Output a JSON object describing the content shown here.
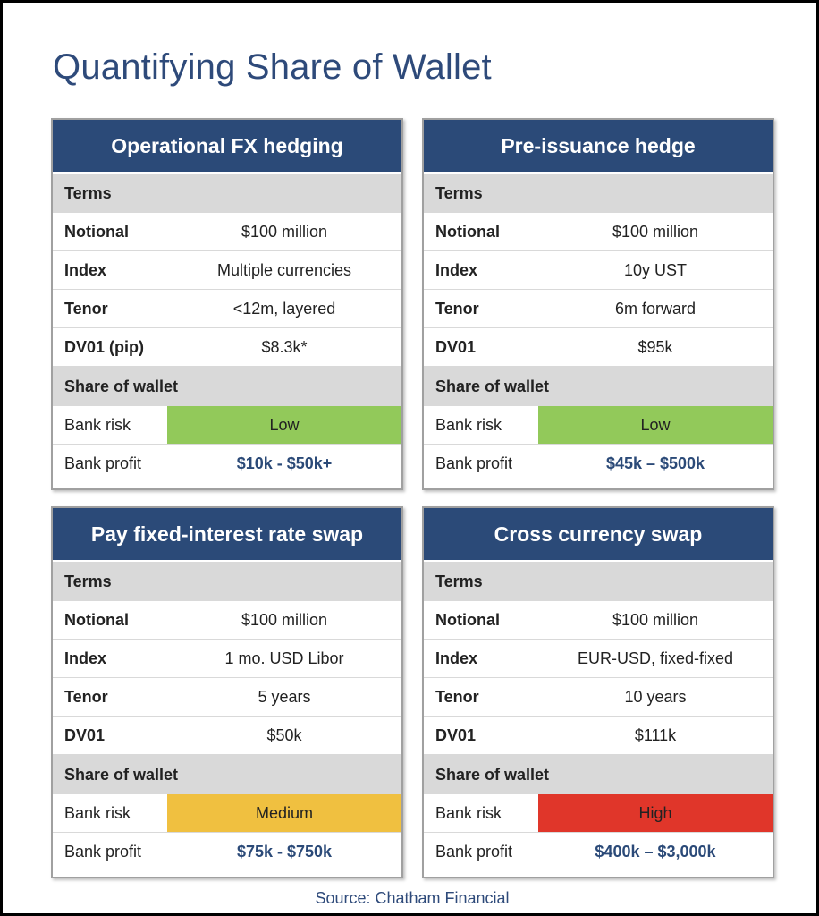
{
  "page": {
    "title": "Quantifying Share of Wallet",
    "source": "Source: Chatham Financial"
  },
  "labels": {
    "terms": "Terms",
    "share_of_wallet": "Share of wallet",
    "bank_risk": "Bank risk",
    "bank_profit": "Bank profit"
  },
  "colors": {
    "header_navy": "#2b4a78",
    "risk_low": "#92c95a",
    "risk_medium": "#f0c040",
    "risk_high": "#e0362a"
  },
  "cards": [
    {
      "title": "Operational FX hedging",
      "terms": [
        {
          "label": "Notional",
          "value": "$100 million"
        },
        {
          "label": "Index",
          "value": "Multiple currencies"
        },
        {
          "label": "Tenor",
          "value": "<12m, layered"
        },
        {
          "label": "DV01 (pip)",
          "value": "$8.3k*"
        }
      ],
      "risk": "Low",
      "risk_color": "#92c95a",
      "profit": "$10k - $50k+"
    },
    {
      "title": "Pre-issuance hedge",
      "terms": [
        {
          "label": "Notional",
          "value": "$100 million"
        },
        {
          "label": "Index",
          "value": "10y UST"
        },
        {
          "label": "Tenor",
          "value": "6m forward"
        },
        {
          "label": "DV01",
          "value": "$95k"
        }
      ],
      "risk": "Low",
      "risk_color": "#92c95a",
      "profit": "$45k – $500k"
    },
    {
      "title": "Pay fixed-interest rate swap",
      "terms": [
        {
          "label": "Notional",
          "value": "$100 million"
        },
        {
          "label": "Index",
          "value": "1 mo. USD Libor"
        },
        {
          "label": "Tenor",
          "value": "5 years"
        },
        {
          "label": "DV01",
          "value": "$50k"
        }
      ],
      "risk": "Medium",
      "risk_color": "#f0c040",
      "profit": "$75k - $750k"
    },
    {
      "title": "Cross currency swap",
      "terms": [
        {
          "label": "Notional",
          "value": "$100 million"
        },
        {
          "label": "Index",
          "value": "EUR-USD, fixed-fixed"
        },
        {
          "label": "Tenor",
          "value": "10 years"
        },
        {
          "label": "DV01",
          "value": "$111k"
        }
      ],
      "risk": "High",
      "risk_color": "#e0362a",
      "profit": "$400k – $3,000k"
    }
  ]
}
